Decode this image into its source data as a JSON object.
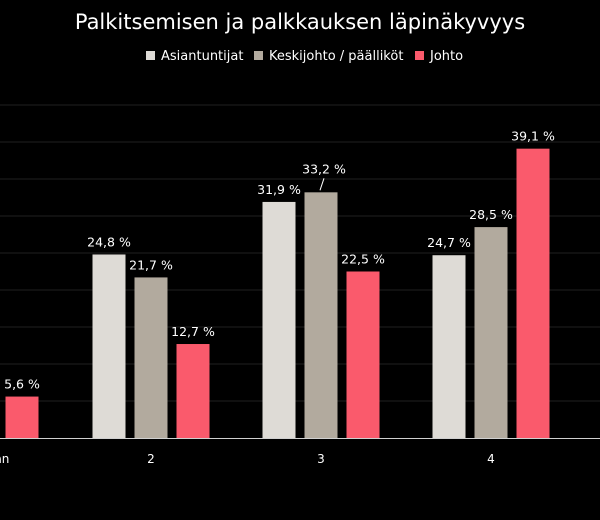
{
  "chart_data": {
    "type": "bar",
    "title": "Palkitsemisen ja palkkauksen läpinäkyvyys",
    "categories": [
      "...ainkaan",
      "2",
      "3",
      "4"
    ],
    "series": [
      {
        "name": "Asiantuntijat",
        "color": "#dedbd6",
        "values": [
          null,
          24.8,
          31.9,
          24.7
        ]
      },
      {
        "name": "Keskijohto / päälliköt",
        "color": "#b2aa9e",
        "values": [
          null,
          21.7,
          33.2,
          28.5
        ]
      },
      {
        "name": "Johto",
        "color": "#fa5a6c",
        "values": [
          5.6,
          12.7,
          22.5,
          39.1
        ]
      }
    ],
    "data_labels": {
      "Asiantuntijat": [
        "",
        "24,8 %",
        "31,9 %",
        "24,7 %"
      ],
      "Keskijohto / päälliköt": [
        "",
        "21,7 %",
        "33,2 %",
        "28,5 %"
      ],
      "Johto": [
        "5,6 %",
        "12,7 %",
        "22,5 %",
        "39,1 %"
      ]
    },
    "ylim": [
      0,
      45
    ],
    "grid": true,
    "legend_position": "top-center",
    "xlabel": "",
    "ylabel": ""
  }
}
